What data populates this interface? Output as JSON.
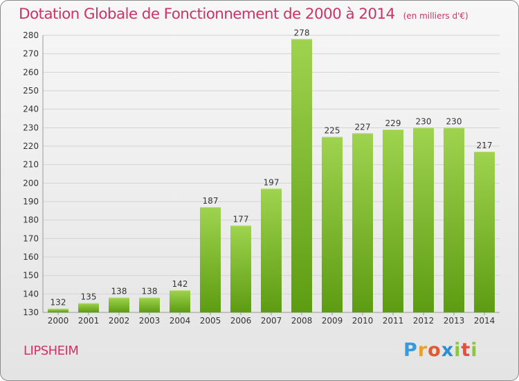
{
  "header": {
    "title": "Dotation Globale de Fonctionnement de 2000 à 2014",
    "subtitle": "(en milliers d'€)"
  },
  "footer": {
    "commune": "LIPSHEIM",
    "logo": "Proxiti"
  },
  "colors": {
    "title": "#cc3366",
    "bar_top": "#9fd34f",
    "bar_bottom": "#5d9c12",
    "grid": "#d3d3d3",
    "axis_text": "#333333"
  },
  "chart_data": {
    "type": "bar",
    "categories": [
      "2000",
      "2001",
      "2002",
      "2003",
      "2004",
      "2005",
      "2006",
      "2007",
      "2008",
      "2009",
      "2010",
      "2011",
      "2012",
      "2013",
      "2014"
    ],
    "values": [
      132,
      135,
      138,
      138,
      142,
      187,
      177,
      197,
      278,
      225,
      227,
      229,
      230,
      230,
      217
    ],
    "title": "Dotation Globale de Fonctionnement de 2000 à 2014",
    "subtitle": "(en milliers d'€)",
    "xlabel": "",
    "ylabel": "",
    "ylim": [
      130,
      280
    ],
    "yticks": [
      130,
      140,
      150,
      160,
      170,
      180,
      190,
      200,
      210,
      220,
      230,
      240,
      250,
      260,
      270,
      280
    ],
    "grid": true,
    "legend": "none",
    "data_labels": true
  }
}
